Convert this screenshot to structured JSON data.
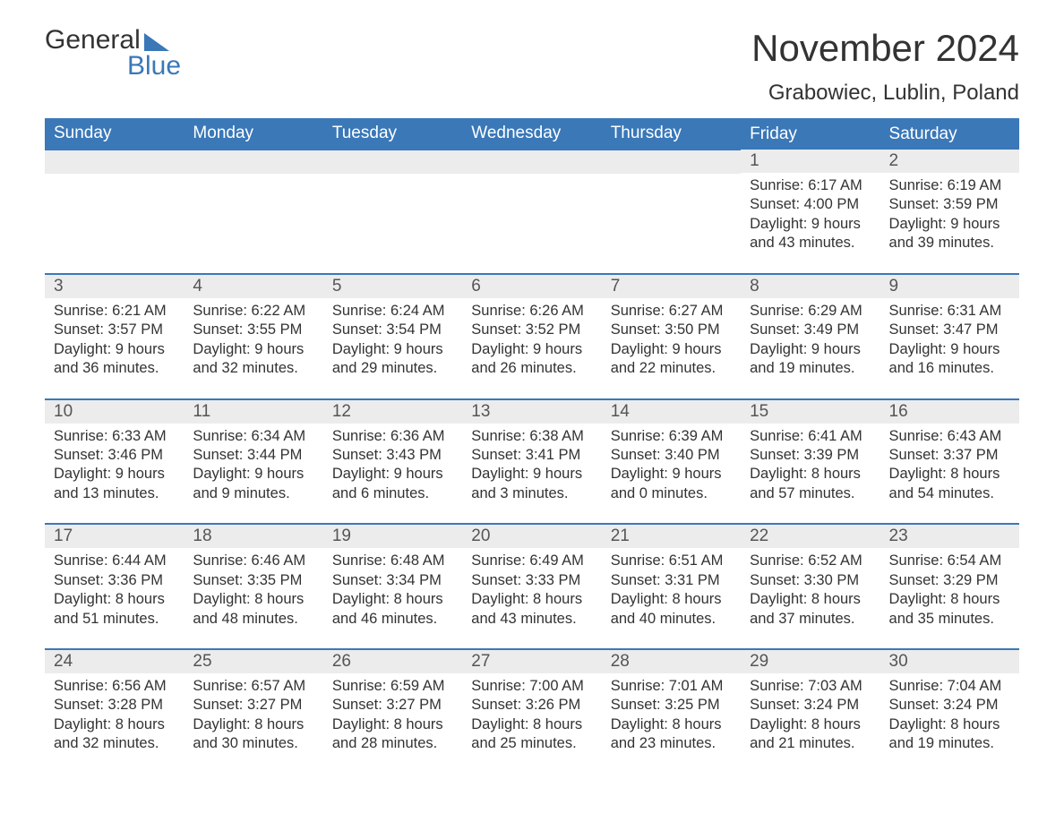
{
  "logo": {
    "word1": "General",
    "word2": "Blue"
  },
  "title": "November 2024",
  "location": "Grabowiec, Lublin, Poland",
  "colors": {
    "header_bg": "#3a78b8",
    "header_text": "#ffffff",
    "daynum_bg": "#ececec",
    "row_divider": "#3a78b8",
    "body_text": "#333333",
    "page_bg": "#ffffff"
  },
  "weekday_headers": [
    "Sunday",
    "Monday",
    "Tuesday",
    "Wednesday",
    "Thursday",
    "Friday",
    "Saturday"
  ],
  "labels": {
    "sunrise": "Sunrise:",
    "sunset": "Sunset:",
    "daylight": "Daylight:"
  },
  "weeks": [
    [
      null,
      null,
      null,
      null,
      null,
      {
        "day": "1",
        "sunrise": "6:17 AM",
        "sunset": "4:00 PM",
        "daylight1": "9 hours",
        "daylight2": "and 43 minutes."
      },
      {
        "day": "2",
        "sunrise": "6:19 AM",
        "sunset": "3:59 PM",
        "daylight1": "9 hours",
        "daylight2": "and 39 minutes."
      }
    ],
    [
      {
        "day": "3",
        "sunrise": "6:21 AM",
        "sunset": "3:57 PM",
        "daylight1": "9 hours",
        "daylight2": "and 36 minutes."
      },
      {
        "day": "4",
        "sunrise": "6:22 AM",
        "sunset": "3:55 PM",
        "daylight1": "9 hours",
        "daylight2": "and 32 minutes."
      },
      {
        "day": "5",
        "sunrise": "6:24 AM",
        "sunset": "3:54 PM",
        "daylight1": "9 hours",
        "daylight2": "and 29 minutes."
      },
      {
        "day": "6",
        "sunrise": "6:26 AM",
        "sunset": "3:52 PM",
        "daylight1": "9 hours",
        "daylight2": "and 26 minutes."
      },
      {
        "day": "7",
        "sunrise": "6:27 AM",
        "sunset": "3:50 PM",
        "daylight1": "9 hours",
        "daylight2": "and 22 minutes."
      },
      {
        "day": "8",
        "sunrise": "6:29 AM",
        "sunset": "3:49 PM",
        "daylight1": "9 hours",
        "daylight2": "and 19 minutes."
      },
      {
        "day": "9",
        "sunrise": "6:31 AM",
        "sunset": "3:47 PM",
        "daylight1": "9 hours",
        "daylight2": "and 16 minutes."
      }
    ],
    [
      {
        "day": "10",
        "sunrise": "6:33 AM",
        "sunset": "3:46 PM",
        "daylight1": "9 hours",
        "daylight2": "and 13 minutes."
      },
      {
        "day": "11",
        "sunrise": "6:34 AM",
        "sunset": "3:44 PM",
        "daylight1": "9 hours",
        "daylight2": "and 9 minutes."
      },
      {
        "day": "12",
        "sunrise": "6:36 AM",
        "sunset": "3:43 PM",
        "daylight1": "9 hours",
        "daylight2": "and 6 minutes."
      },
      {
        "day": "13",
        "sunrise": "6:38 AM",
        "sunset": "3:41 PM",
        "daylight1": "9 hours",
        "daylight2": "and 3 minutes."
      },
      {
        "day": "14",
        "sunrise": "6:39 AM",
        "sunset": "3:40 PM",
        "daylight1": "9 hours",
        "daylight2": "and 0 minutes."
      },
      {
        "day": "15",
        "sunrise": "6:41 AM",
        "sunset": "3:39 PM",
        "daylight1": "8 hours",
        "daylight2": "and 57 minutes."
      },
      {
        "day": "16",
        "sunrise": "6:43 AM",
        "sunset": "3:37 PM",
        "daylight1": "8 hours",
        "daylight2": "and 54 minutes."
      }
    ],
    [
      {
        "day": "17",
        "sunrise": "6:44 AM",
        "sunset": "3:36 PM",
        "daylight1": "8 hours",
        "daylight2": "and 51 minutes."
      },
      {
        "day": "18",
        "sunrise": "6:46 AM",
        "sunset": "3:35 PM",
        "daylight1": "8 hours",
        "daylight2": "and 48 minutes."
      },
      {
        "day": "19",
        "sunrise": "6:48 AM",
        "sunset": "3:34 PM",
        "daylight1": "8 hours",
        "daylight2": "and 46 minutes."
      },
      {
        "day": "20",
        "sunrise": "6:49 AM",
        "sunset": "3:33 PM",
        "daylight1": "8 hours",
        "daylight2": "and 43 minutes."
      },
      {
        "day": "21",
        "sunrise": "6:51 AM",
        "sunset": "3:31 PM",
        "daylight1": "8 hours",
        "daylight2": "and 40 minutes."
      },
      {
        "day": "22",
        "sunrise": "6:52 AM",
        "sunset": "3:30 PM",
        "daylight1": "8 hours",
        "daylight2": "and 37 minutes."
      },
      {
        "day": "23",
        "sunrise": "6:54 AM",
        "sunset": "3:29 PM",
        "daylight1": "8 hours",
        "daylight2": "and 35 minutes."
      }
    ],
    [
      {
        "day": "24",
        "sunrise": "6:56 AM",
        "sunset": "3:28 PM",
        "daylight1": "8 hours",
        "daylight2": "and 32 minutes."
      },
      {
        "day": "25",
        "sunrise": "6:57 AM",
        "sunset": "3:27 PM",
        "daylight1": "8 hours",
        "daylight2": "and 30 minutes."
      },
      {
        "day": "26",
        "sunrise": "6:59 AM",
        "sunset": "3:27 PM",
        "daylight1": "8 hours",
        "daylight2": "and 28 minutes."
      },
      {
        "day": "27",
        "sunrise": "7:00 AM",
        "sunset": "3:26 PM",
        "daylight1": "8 hours",
        "daylight2": "and 25 minutes."
      },
      {
        "day": "28",
        "sunrise": "7:01 AM",
        "sunset": "3:25 PM",
        "daylight1": "8 hours",
        "daylight2": "and 23 minutes."
      },
      {
        "day": "29",
        "sunrise": "7:03 AM",
        "sunset": "3:24 PM",
        "daylight1": "8 hours",
        "daylight2": "and 21 minutes."
      },
      {
        "day": "30",
        "sunrise": "7:04 AM",
        "sunset": "3:24 PM",
        "daylight1": "8 hours",
        "daylight2": "and 19 minutes."
      }
    ]
  ]
}
